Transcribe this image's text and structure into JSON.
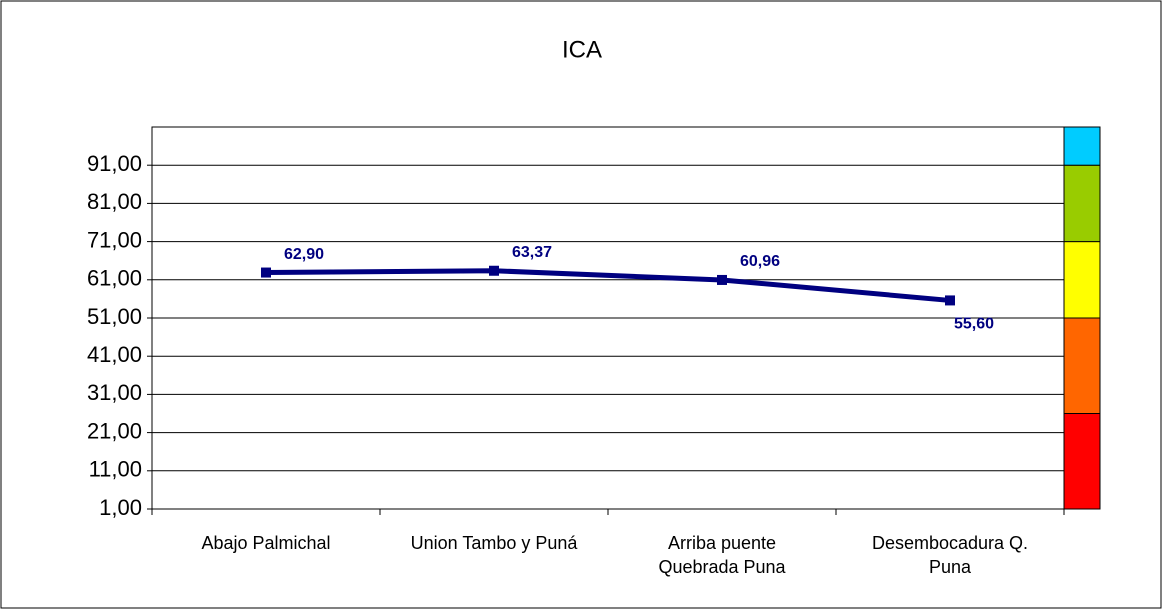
{
  "chart_data": {
    "type": "line",
    "title": "ICA",
    "categories": [
      "Abajo Palmichal",
      "Union Tambo y Puná",
      "Arriba puente Quebrada Puna",
      "Desembocadura Q. Puna"
    ],
    "series": [
      {
        "name": "ICA",
        "color": "#000080",
        "values": [
          62.9,
          63.37,
          60.96,
          55.6
        ],
        "value_labels": [
          "62,90",
          "63,37",
          "60,96",
          "55,60"
        ]
      }
    ],
    "ylim": [
      1,
      101
    ],
    "yticks": [
      {
        "value": 1,
        "label": "1,00"
      },
      {
        "value": 11,
        "label": "11,00"
      },
      {
        "value": 21,
        "label": "21,00"
      },
      {
        "value": 31,
        "label": "31,00"
      },
      {
        "value": 41,
        "label": "41,00"
      },
      {
        "value": 51,
        "label": "51,00"
      },
      {
        "value": 61,
        "label": "61,00"
      },
      {
        "value": 71,
        "label": "71,00"
      },
      {
        "value": 81,
        "label": "81,00"
      },
      {
        "value": 91,
        "label": "91,00"
      }
    ],
    "grid": true,
    "color_scale": {
      "values": [
        25,
        25,
        20,
        20,
        10
      ],
      "colors": [
        "#ff0000",
        "#ff6600",
        "#ffff00",
        "#99cc00",
        "#00ccff"
      ]
    }
  }
}
